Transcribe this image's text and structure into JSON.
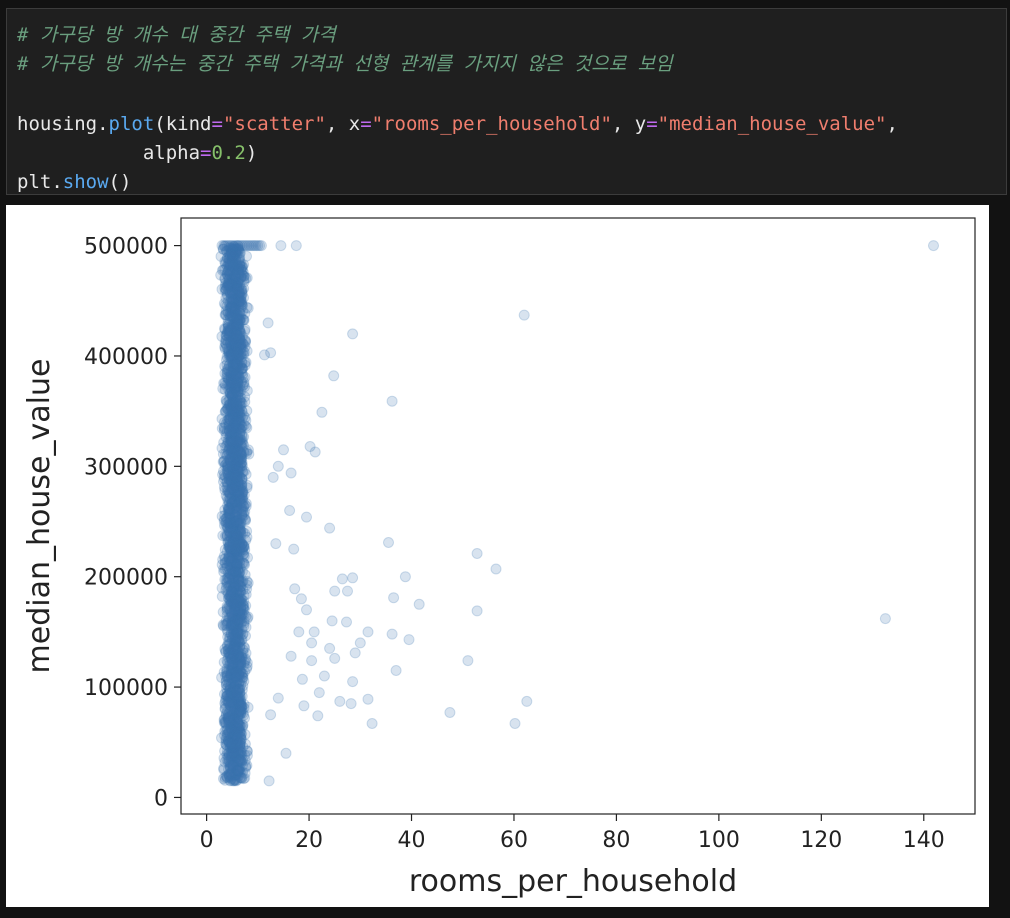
{
  "code_cell": {
    "comment_line_1": "# 가구당 방 개수 대 중간 주택 가격",
    "comment_line_2": "# 가구당 방 개수는 중간 주택 가격과 선형 관계를 가지지 않은 것으로 보임",
    "line3": {
      "obj": "housing.",
      "fn": "plot",
      "open": "(kind",
      "eq1": "=",
      "str1": "\"scatter\"",
      "sep1": ", x",
      "eq2": "=",
      "str2": "\"rooms_per_household\"",
      "sep2": ", y",
      "eq3": "=",
      "str3": "\"median_house_value\"",
      "sep3": ","
    },
    "line4": {
      "indent": "           alpha",
      "eq": "=",
      "num": "0.2",
      "close": ")"
    },
    "line5": {
      "obj": "plt.",
      "fn": "show",
      "close": "()"
    }
  },
  "chart_data": {
    "type": "scatter",
    "xlabel": "rooms_per_household",
    "ylabel": "median_house_value",
    "xlim": [
      -5,
      150
    ],
    "ylim": [
      -15000,
      525000
    ],
    "xticks": [
      0,
      20,
      40,
      60,
      80,
      100,
      120,
      140
    ],
    "yticks": [
      0,
      100000,
      200000,
      300000,
      400000,
      500000
    ],
    "alpha": 0.2,
    "color": "#3b75af",
    "dense_cluster": {
      "x_range": [
        2.5,
        8.5
      ],
      "y_range": [
        15000,
        500001
      ],
      "note": ""
    },
    "points": [
      [
        141.9,
        500001
      ],
      [
        62,
        437000
      ],
      [
        28.5,
        420000
      ],
      [
        24.8,
        382000
      ],
      [
        36.2,
        359000
      ],
      [
        22.5,
        349000
      ],
      [
        20.2,
        318000
      ],
      [
        21.2,
        313000
      ],
      [
        15,
        315000
      ],
      [
        16.5,
        294000
      ],
      [
        24,
        244000
      ],
      [
        19.5,
        254000
      ],
      [
        35.5,
        231000
      ],
      [
        52.8,
        221000
      ],
      [
        56.5,
        207000
      ],
      [
        38.8,
        200000
      ],
      [
        26.5,
        198000
      ],
      [
        28.5,
        199000
      ],
      [
        25,
        187000
      ],
      [
        27.5,
        187000
      ],
      [
        36.5,
        181000
      ],
      [
        41.5,
        175000
      ],
      [
        52.8,
        169000
      ],
      [
        132.5,
        162000
      ],
      [
        24.5,
        160000
      ],
      [
        31.5,
        150000
      ],
      [
        36.2,
        148000
      ],
      [
        39.5,
        143000
      ],
      [
        30,
        140000
      ],
      [
        29,
        131000
      ],
      [
        25,
        126000
      ],
      [
        51,
        124000
      ],
      [
        37,
        115000
      ],
      [
        28.5,
        105000
      ],
      [
        31.5,
        89000
      ],
      [
        26,
        87000
      ],
      [
        28.2,
        85000
      ],
      [
        47.5,
        77000
      ],
      [
        62.5,
        87000
      ],
      [
        60.2,
        67000
      ],
      [
        32.3,
        67000
      ],
      [
        17.5,
        500001
      ],
      [
        14.5,
        500001
      ],
      [
        12,
        430000
      ],
      [
        12.5,
        403000
      ],
      [
        11.3,
        401000
      ],
      [
        17.2,
        189000
      ],
      [
        18.5,
        180000
      ],
      [
        20.5,
        140000
      ],
      [
        18,
        150000
      ],
      [
        14,
        90000
      ],
      [
        12.5,
        75000
      ],
      [
        15.5,
        40000
      ],
      [
        12.2,
        15000
      ],
      [
        14,
        300000
      ],
      [
        13,
        290000
      ],
      [
        13.5,
        230000
      ],
      [
        16.2,
        260000
      ],
      [
        17,
        225000
      ],
      [
        20.5,
        124000
      ],
      [
        22,
        95000
      ],
      [
        21,
        150000
      ],
      [
        19.5,
        170000
      ],
      [
        23,
        110000
      ],
      [
        24,
        135000
      ],
      [
        18.7,
        107000
      ],
      [
        16.5,
        128000
      ],
      [
        19,
        83000
      ],
      [
        21.7,
        74000
      ],
      [
        27.3,
        159000
      ]
    ]
  }
}
